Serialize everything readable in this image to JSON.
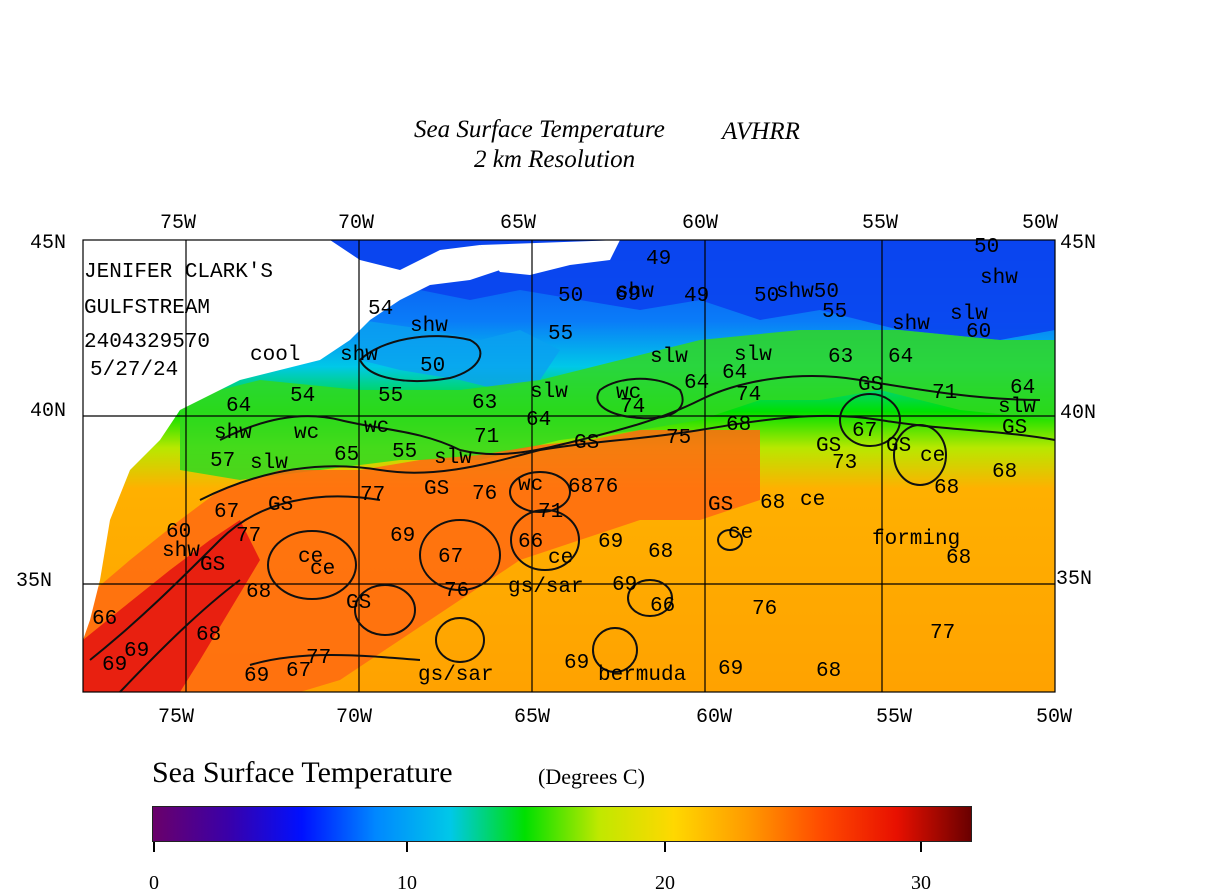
{
  "title_line1": "Sea Surface Temperature",
  "title_sensor": "AVHRR",
  "title_line2": "2 km Resolution",
  "credit": [
    "JENIFER CLARK'S",
    "GULFSTREAM",
    "2404329570",
    "5/27/24"
  ],
  "lon_labels": [
    "75W",
    "70W",
    "65W",
    "60W",
    "55W",
    "50W"
  ],
  "lat_labels": [
    "45N",
    "40N",
    "35N"
  ],
  "annotations": [
    {
      "text": "49"
    },
    {
      "text": "50"
    },
    {
      "text": "shw"
    },
    {
      "text": "49"
    },
    {
      "text": "50"
    },
    {
      "text": "shw50"
    },
    {
      "text": "50"
    },
    {
      "text": "shw"
    },
    {
      "text": "54"
    },
    {
      "text": "shw"
    },
    {
      "text": "55"
    },
    {
      "text": "55"
    },
    {
      "text": "shw"
    },
    {
      "text": "slw"
    },
    {
      "text": "60"
    },
    {
      "text": "cool"
    },
    {
      "text": "shw"
    },
    {
      "text": "50"
    },
    {
      "text": "slw"
    },
    {
      "text": "slw"
    },
    {
      "text": "63"
    },
    {
      "text": "64"
    },
    {
      "text": "54"
    },
    {
      "text": "55"
    },
    {
      "text": "63"
    },
    {
      "text": "slw"
    },
    {
      "text": "wc"
    },
    {
      "text": "74"
    },
    {
      "text": "64"
    },
    {
      "text": "64"
    },
    {
      "text": "74"
    },
    {
      "text": "GS"
    },
    {
      "text": "71"
    },
    {
      "text": "64"
    },
    {
      "text": "slw"
    },
    {
      "text": "64"
    },
    {
      "text": "shw"
    },
    {
      "text": "wc"
    },
    {
      "text": "wc"
    },
    {
      "text": "64"
    },
    {
      "text": "71"
    },
    {
      "text": "GS"
    },
    {
      "text": "75"
    },
    {
      "text": "68"
    },
    {
      "text": "GS"
    },
    {
      "text": "67"
    },
    {
      "text": "GS"
    },
    {
      "text": "ce"
    },
    {
      "text": "GS"
    },
    {
      "text": "57"
    },
    {
      "text": "slw"
    },
    {
      "text": "65"
    },
    {
      "text": "55"
    },
    {
      "text": "slw"
    },
    {
      "text": "73"
    },
    {
      "text": "68"
    },
    {
      "text": "GS"
    },
    {
      "text": "76"
    },
    {
      "text": "wc"
    },
    {
      "text": "6876"
    },
    {
      "text": "77"
    },
    {
      "text": "GS"
    },
    {
      "text": "68"
    },
    {
      "text": "ce"
    },
    {
      "text": "68"
    },
    {
      "text": "67"
    },
    {
      "text": "GS"
    },
    {
      "text": "71"
    },
    {
      "text": "ce"
    },
    {
      "text": "60"
    },
    {
      "text": "69"
    },
    {
      "text": "66"
    },
    {
      "text": "69"
    },
    {
      "text": "ce"
    },
    {
      "text": "forming"
    },
    {
      "text": "shw"
    },
    {
      "text": "77"
    },
    {
      "text": "ce"
    },
    {
      "text": "67"
    },
    {
      "text": "ce"
    },
    {
      "text": "68"
    },
    {
      "text": "68"
    },
    {
      "text": "GS"
    },
    {
      "text": "66"
    },
    {
      "text": "76"
    },
    {
      "text": "gs/sar"
    },
    {
      "text": "69"
    },
    {
      "text": "76"
    },
    {
      "text": "66"
    },
    {
      "text": "68"
    },
    {
      "text": "68"
    },
    {
      "text": "77"
    },
    {
      "text": "69"
    },
    {
      "text": "69"
    },
    {
      "text": "GS"
    },
    {
      "text": "77"
    },
    {
      "text": "gs/sar"
    },
    {
      "text": "69"
    },
    {
      "text": "bermuda"
    },
    {
      "text": "69"
    },
    {
      "text": "67"
    },
    {
      "text": "69"
    },
    {
      "text": "68"
    },
    {
      "text": "69"
    }
  ],
  "colorbar": {
    "title": "Sea Surface Temperature",
    "unit": "(Degrees C)",
    "ticks": [
      "0",
      "10",
      "20",
      "30"
    ],
    "colors": [
      "#6a006a",
      "#3a00a8",
      "#0010ff",
      "#0088ff",
      "#00c8e8",
      "#00e000",
      "#c0e800",
      "#ffd800",
      "#ff9a00",
      "#ff4a00",
      "#e81000",
      "#6a0000"
    ]
  }
}
